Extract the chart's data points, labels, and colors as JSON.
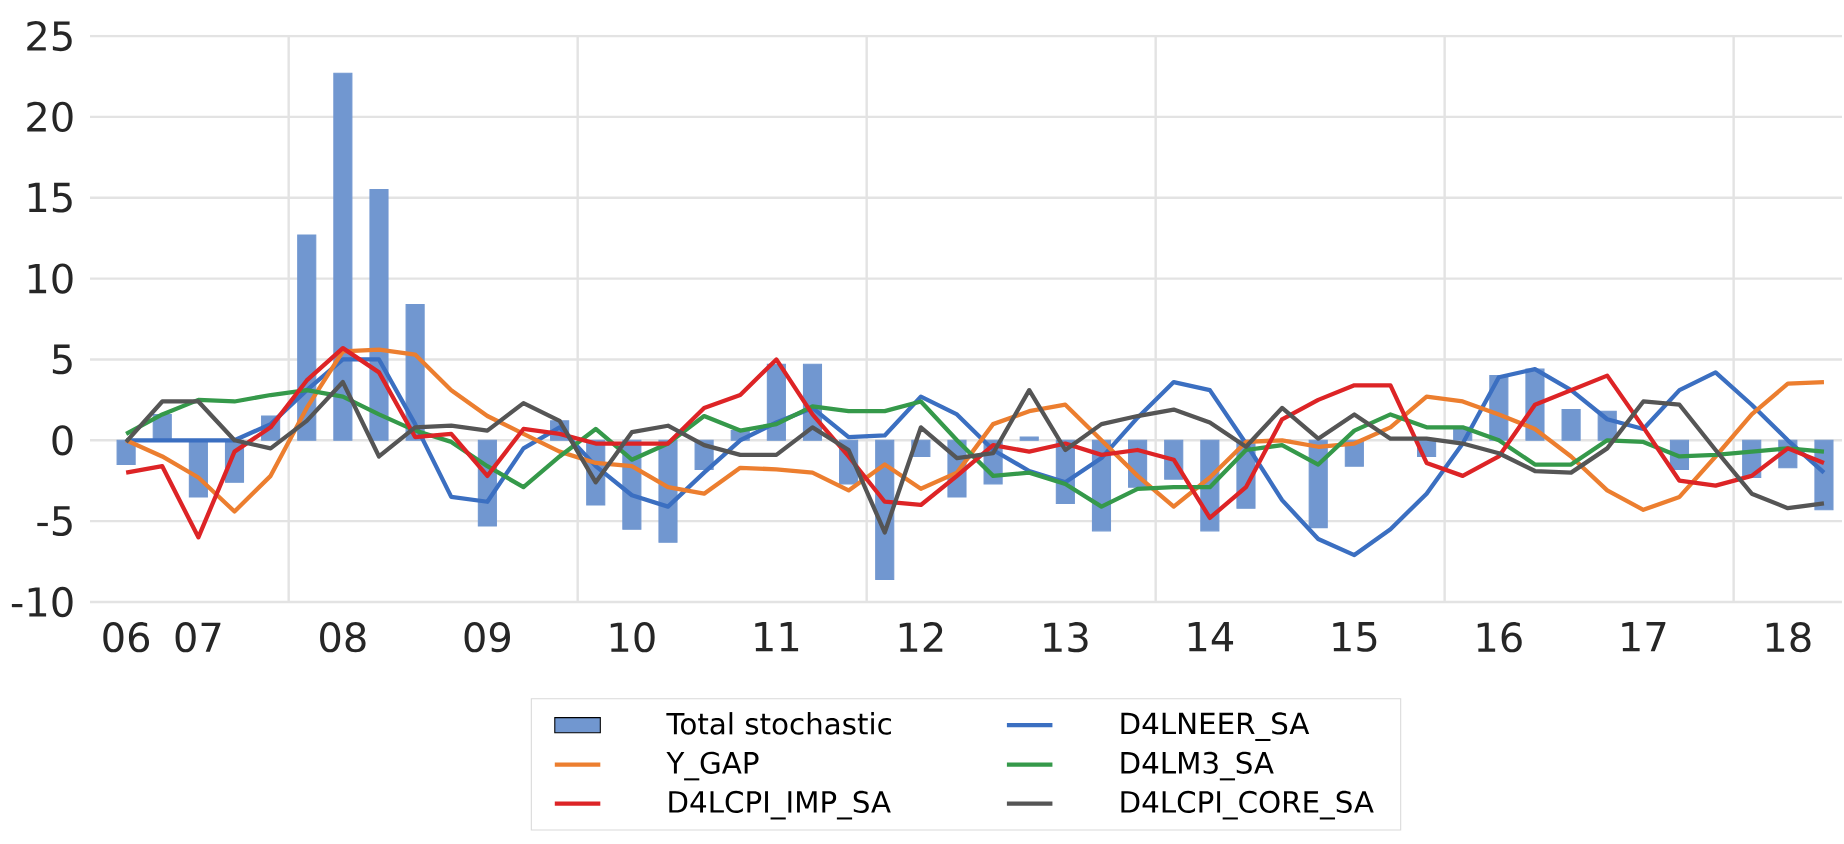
{
  "chart_data": {
    "type": "line",
    "categories": [
      "06",
      null,
      "07",
      null,
      null,
      null,
      "08",
      null,
      null,
      null,
      "09",
      null,
      null,
      null,
      "10",
      null,
      null,
      null,
      "11",
      null,
      null,
      null,
      "12",
      null,
      null,
      null,
      "13",
      null,
      null,
      null,
      "14",
      null,
      null,
      null,
      "15",
      null,
      null,
      null,
      "16",
      null,
      null,
      null,
      "17",
      null,
      null,
      null,
      "18",
      null
    ],
    "series": [
      {
        "name": "Total stochastic",
        "type": "bar",
        "color": "#7197d0",
        "values": [
          -1.5,
          1.6,
          -3.5,
          -2.6,
          1.5,
          12.7,
          22.7,
          15.5,
          8.4,
          null,
          -5.3,
          null,
          1.2,
          -4.0,
          -5.5,
          -6.3,
          -1.8,
          0.6,
          4.7,
          4.7,
          -2.7,
          -8.6,
          -1.0,
          -3.5,
          -2.7,
          0.2,
          -3.9,
          -5.6,
          -2.9,
          -2.4,
          -5.6,
          -4.2,
          0,
          -5.4,
          -1.6,
          null,
          -1.0,
          0.8,
          4.0,
          4.4,
          1.9,
          1.8,
          null,
          -1.8,
          null,
          -2.3,
          -1.7,
          -4.3
        ]
      },
      {
        "name": "D4LNEER_SA",
        "color": "#3b6fc1",
        "values": [
          0,
          0,
          0,
          0,
          1.0,
          3.1,
          5.0,
          5.0,
          1.0,
          -3.5,
          -3.8,
          -0.5,
          0.8,
          -1.6,
          -3.4,
          -4.1,
          -2.0,
          0,
          1.1,
          2.0,
          0.2,
          0.3,
          2.7,
          1.6,
          -0.6,
          -1.9,
          -2.6,
          -1.1,
          1.4,
          3.6,
          3.1,
          -0.2,
          -3.7,
          -6.1,
          -7.1,
          -5.5,
          -3.3,
          -0.2,
          3.9,
          4.4,
          3.1,
          1.3,
          0.7,
          3.1,
          4.2,
          2.2,
          0,
          -2.0
        ]
      },
      {
        "name": "Y_GAP",
        "color": "#ec7e2f",
        "values": [
          0,
          -1.0,
          -2.3,
          -4.4,
          -2.2,
          2.0,
          5.5,
          5.6,
          5.3,
          3.1,
          1.5,
          0.4,
          -0.7,
          -1.4,
          -1.6,
          -2.9,
          -3.3,
          -1.7,
          -1.8,
          -2.0,
          -3.1,
          -1.5,
          -3.0,
          -2.0,
          1.0,
          1.8,
          2.2,
          0,
          -2.2,
          -4.1,
          -2.3,
          -0.1,
          0,
          -0.4,
          -0.2,
          0.8,
          2.7,
          2.4,
          1.6,
          0.7,
          -1.0,
          -3.1,
          -4.3,
          -3.5,
          -1.0,
          1.6,
          3.5,
          3.6
        ]
      },
      {
        "name": "D4LM3_SA",
        "color": "#35994a",
        "values": [
          0.4,
          1.6,
          2.5,
          2.4,
          2.8,
          3.1,
          2.7,
          1.6,
          0.6,
          -0.1,
          -1.6,
          -2.9,
          -1.0,
          0.7,
          -1.2,
          -0.2,
          1.5,
          0.6,
          1.0,
          2.1,
          1.8,
          1.8,
          2.4,
          0,
          -2.2,
          -2.0,
          -2.7,
          -4.1,
          -3.0,
          -2.9,
          -2.9,
          -0.6,
          -0.3,
          -1.5,
          0.6,
          1.6,
          0.8,
          0.8,
          0,
          -1.5,
          -1.5,
          0,
          -0.1,
          -1.0,
          -0.9,
          -0.7,
          -0.5,
          -0.7
        ]
      },
      {
        "name": "D4LCPI_IMP_SA",
        "color": "#dd2426",
        "values": [
          -2.0,
          -1.6,
          -6.0,
          -0.7,
          0.8,
          3.7,
          5.7,
          4.2,
          0.2,
          0.4,
          -2.2,
          0.7,
          0.4,
          -0.2,
          -0.2,
          -0.2,
          2.0,
          2.8,
          5.0,
          1.6,
          -1.0,
          -3.8,
          -4.0,
          -2.2,
          -0.3,
          -0.7,
          -0.2,
          -0.9,
          -0.6,
          -1.2,
          -4.8,
          -2.9,
          1.3,
          2.5,
          3.4,
          3.4,
          -1.4,
          -2.2,
          -1.0,
          2.2,
          3.1,
          4.0,
          0.8,
          -2.5,
          -2.8,
          -2.2,
          -0.5,
          -1.4
        ]
      },
      {
        "name": "D4LCPI_CORE_SA",
        "color": "#555555",
        "values": [
          -0.1,
          2.4,
          2.4,
          0,
          -0.5,
          1.2,
          3.6,
          -1.0,
          0.8,
          0.9,
          0.6,
          2.3,
          1.2,
          -2.6,
          0.5,
          0.9,
          -0.3,
          -0.9,
          -0.9,
          0.8,
          -0.6,
          -5.7,
          0.8,
          -1.1,
          -0.8,
          3.1,
          -0.6,
          1.0,
          1.5,
          1.9,
          1.1,
          -0.4,
          2.0,
          0.1,
          1.6,
          0.1,
          0.1,
          -0.2,
          -0.8,
          -1.9,
          -2.0,
          -0.5,
          2.4,
          2.2,
          -0.6,
          -3.3,
          -4.2,
          -3.9
        ]
      }
    ],
    "ylim": [
      -10,
      25
    ],
    "yticks": [
      -10,
      -5,
      0,
      5,
      10,
      15,
      20,
      25
    ],
    "grid": true,
    "legend": "bottom"
  }
}
